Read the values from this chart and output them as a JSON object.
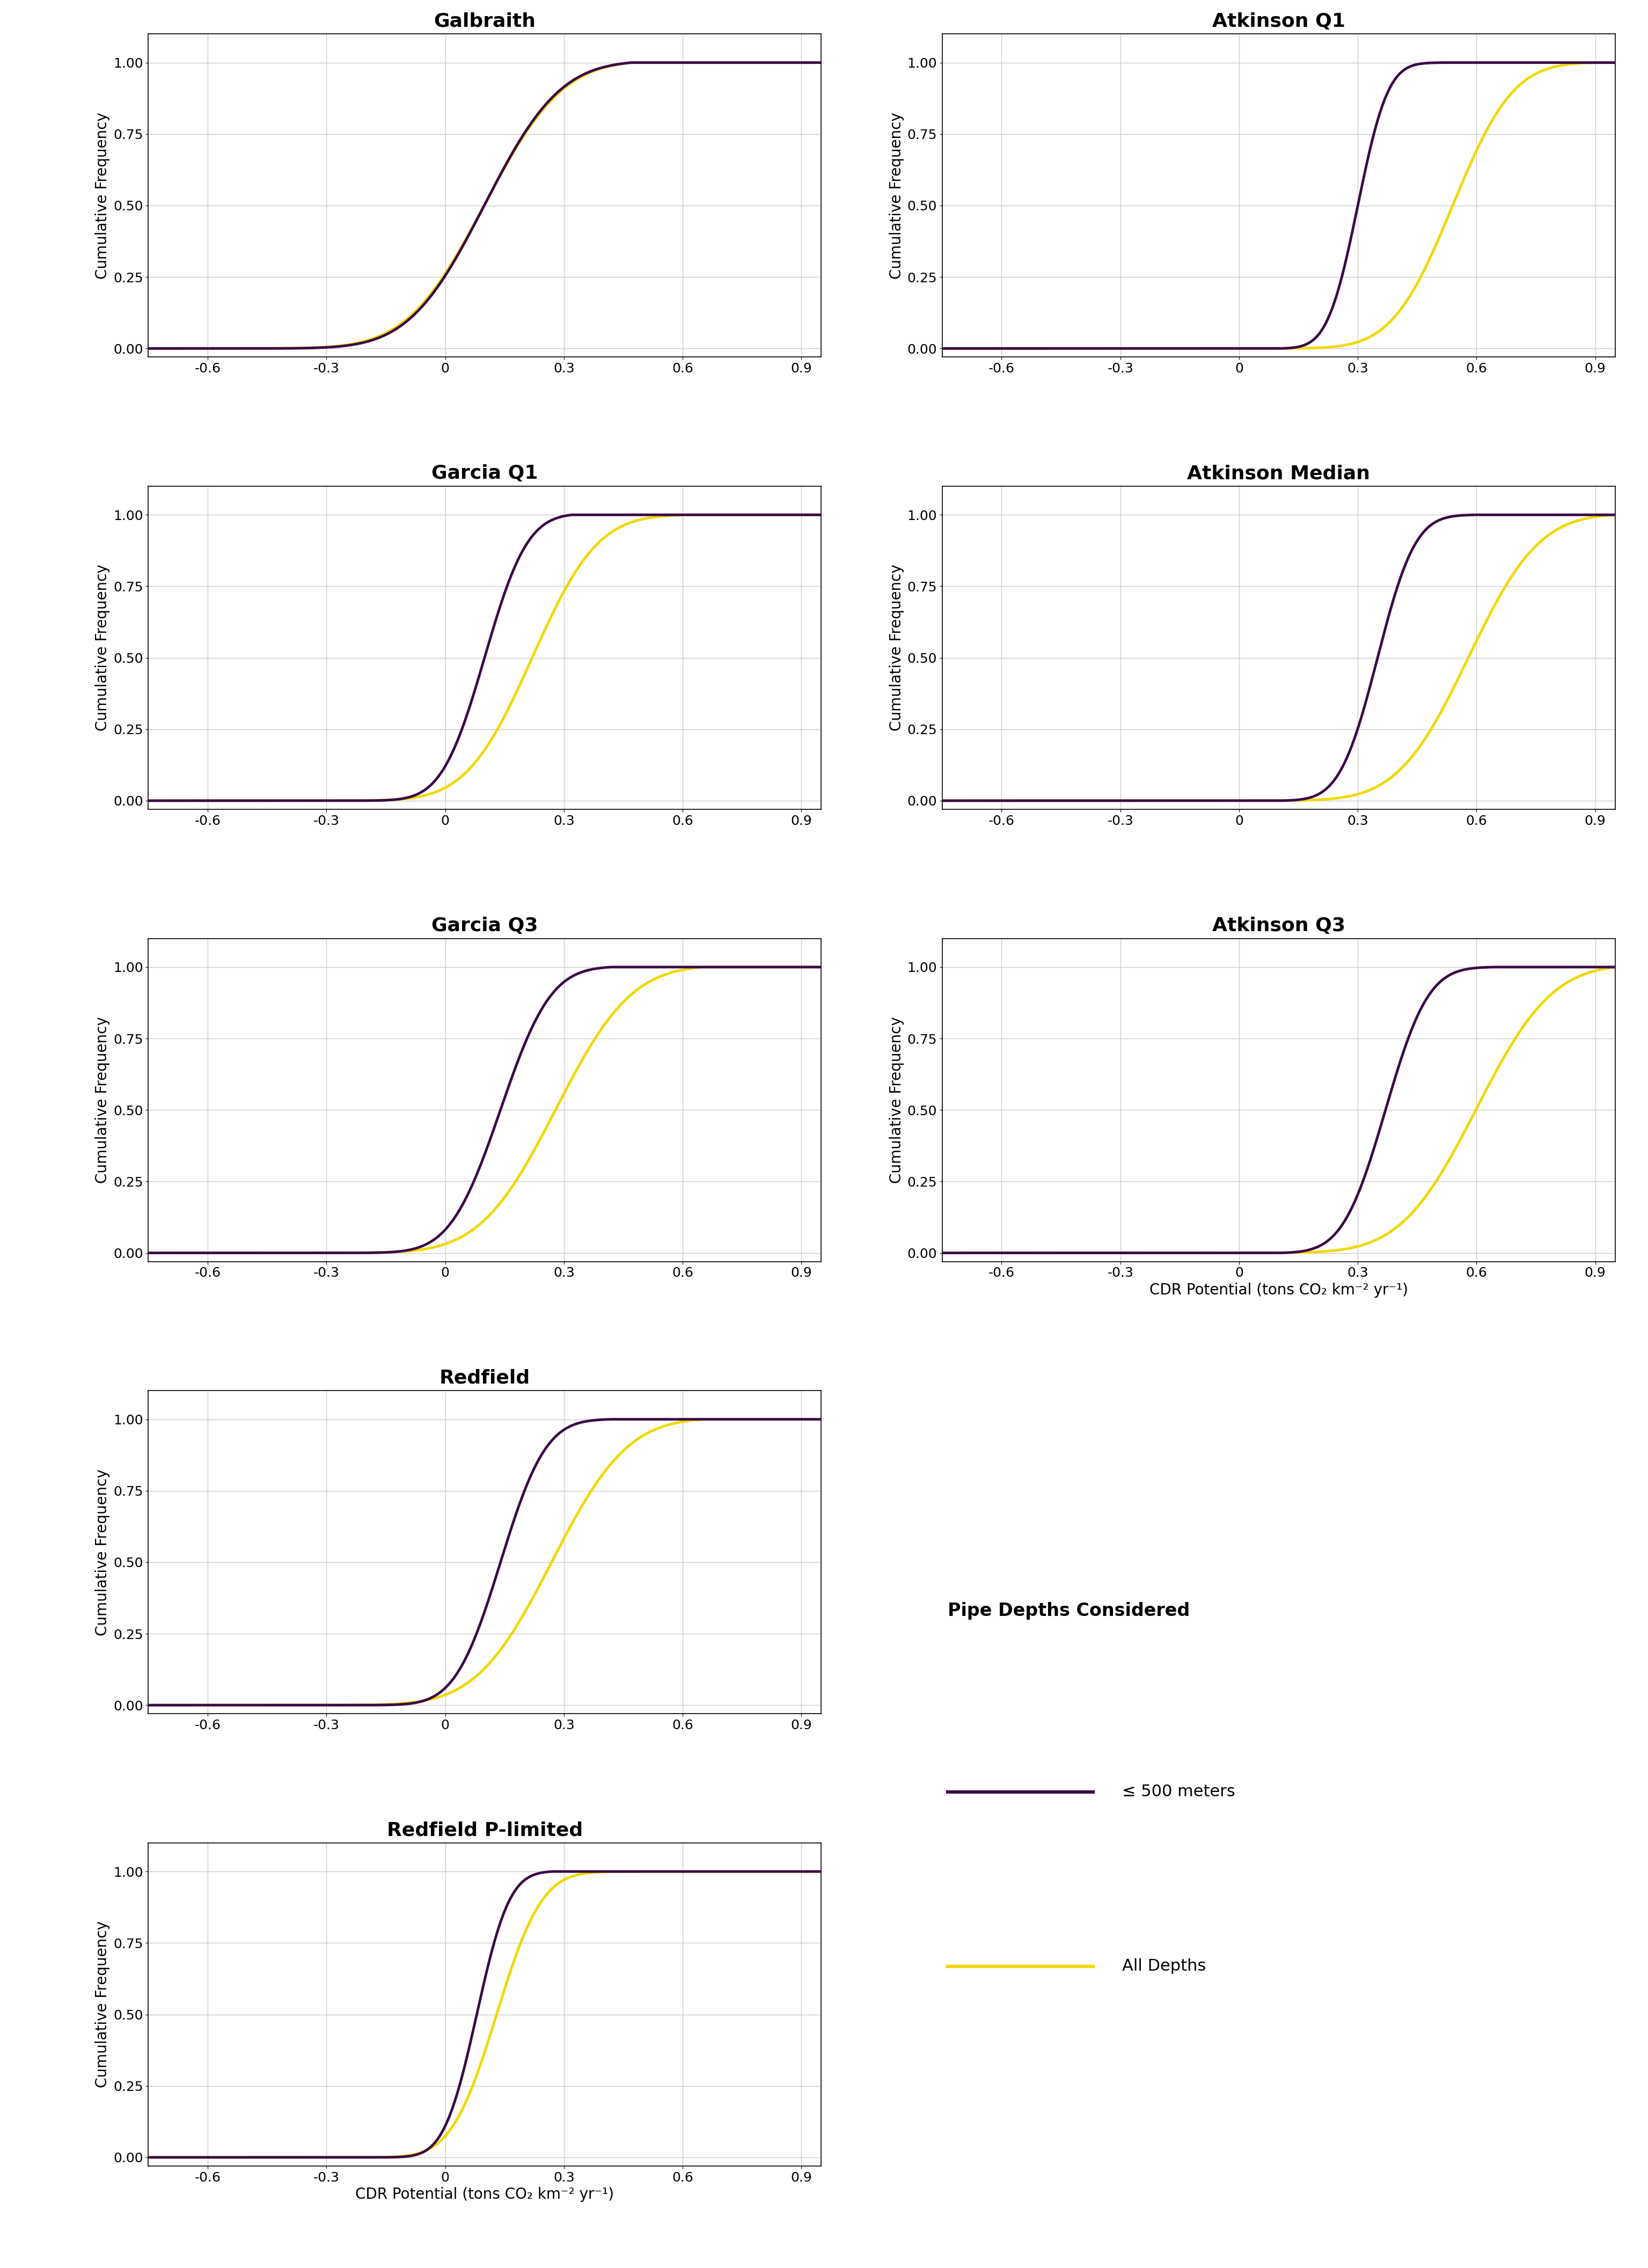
{
  "panels": [
    {
      "title": "Galbraith",
      "row": 0,
      "col": 0,
      "shallow_mu": 0.1,
      "shallow_sigma": 0.15,
      "shallow_lo": -0.5,
      "shallow_hi": 0.47,
      "all_mu": 0.1,
      "all_sigma": 0.155,
      "all_lo": -0.5,
      "all_hi": 0.47
    },
    {
      "title": "Atkinson Q1",
      "row": 0,
      "col": 1,
      "shallow_mu": 0.3,
      "shallow_sigma": 0.06,
      "shallow_lo": 0.1,
      "shallow_hi": 0.52,
      "all_mu": 0.54,
      "all_sigma": 0.12,
      "all_lo": -0.22,
      "all_hi": 0.9
    },
    {
      "title": "Garcia Q1",
      "row": 1,
      "col": 0,
      "shallow_mu": 0.1,
      "shallow_sigma": 0.085,
      "shallow_lo": -0.45,
      "shallow_hi": 0.32,
      "all_mu": 0.22,
      "all_sigma": 0.13,
      "all_lo": -0.45,
      "all_hi": 0.62
    },
    {
      "title": "Atkinson Median",
      "row": 1,
      "col": 1,
      "shallow_mu": 0.35,
      "shallow_sigma": 0.075,
      "shallow_lo": 0.1,
      "shallow_hi": 0.6,
      "all_mu": 0.58,
      "all_sigma": 0.14,
      "all_lo": -0.1,
      "all_hi": 0.95
    },
    {
      "title": "Garcia Q3",
      "row": 2,
      "col": 0,
      "shallow_mu": 0.14,
      "shallow_sigma": 0.1,
      "shallow_lo": -0.45,
      "shallow_hi": 0.42,
      "all_mu": 0.28,
      "all_sigma": 0.15,
      "all_lo": -0.45,
      "all_hi": 0.65
    },
    {
      "title": "Atkinson Q3",
      "row": 2,
      "col": 1,
      "shallow_mu": 0.37,
      "shallow_sigma": 0.085,
      "shallow_lo": 0.1,
      "shallow_hi": 0.65,
      "all_mu": 0.6,
      "all_sigma": 0.15,
      "all_lo": -0.05,
      "all_hi": 0.95
    },
    {
      "title": "Redfield",
      "row": 3,
      "col": 0,
      "shallow_mu": 0.14,
      "shallow_sigma": 0.09,
      "shallow_lo": -0.45,
      "shallow_hi": 0.42,
      "all_mu": 0.27,
      "all_sigma": 0.15,
      "all_lo": -0.45,
      "all_hi": 0.65
    },
    {
      "title": "Redfield P-limited",
      "row": 4,
      "col": 0,
      "shallow_mu": 0.08,
      "shallow_sigma": 0.065,
      "shallow_lo": -0.2,
      "shallow_hi": 0.27,
      "all_mu": 0.13,
      "all_sigma": 0.09,
      "all_lo": -0.2,
      "all_hi": 0.62
    }
  ],
  "color_shallow": "#3b0a47",
  "color_all": "#f0d800",
  "xlim": [
    -0.75,
    0.95
  ],
  "xticks": [
    -0.6,
    -0.3,
    0.0,
    0.3,
    0.6,
    0.9
  ],
  "xticklabels": [
    "-0.6",
    "-0.3",
    "0",
    "0.3",
    "0.6",
    "0.9"
  ],
  "ylim": [
    -0.03,
    1.1
  ],
  "yticks": [
    0.0,
    0.25,
    0.5,
    0.75,
    1.0
  ],
  "yticklabels": [
    "0.00",
    "0.25",
    "0.50",
    "0.75",
    "1.00"
  ],
  "ylabel": "Cumulative Frequency",
  "xlabel_bottom": "CDR Potential (tons CO₂ km⁻² yr⁻¹)",
  "legend_title": "Pipe Depths Considered",
  "legend_label_shallow": "≤ 500 meters",
  "legend_label_all": "All Depths",
  "title_fontsize": 26,
  "label_fontsize": 20,
  "tick_fontsize": 18,
  "legend_title_fontsize": 24,
  "legend_label_fontsize": 22,
  "line_width": 3.5,
  "background_color": "#ffffff",
  "grid_color": "#cccccc"
}
